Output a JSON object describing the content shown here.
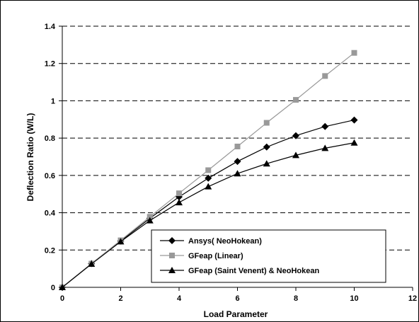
{
  "chart_data": {
    "type": "line",
    "title": "",
    "xlabel": "Load Parameter",
    "ylabel": "Deflection Ratio (W/L)",
    "xlim": [
      0,
      12
    ],
    "ylim": [
      0,
      1.4
    ],
    "x_ticks": [
      "0",
      "2",
      "4",
      "6",
      "8",
      "10",
      "12"
    ],
    "y_ticks": [
      "0",
      "0.2",
      "0.4",
      "0.6",
      "0.8",
      "1",
      "1.2",
      "1.4"
    ],
    "grid": "horizontal dashed",
    "legend_position": "inside-bottom-right",
    "series": [
      {
        "name": "Ansys( NeoHokean)",
        "marker": "diamond",
        "color": "#000000",
        "x": [
          0,
          1,
          2,
          3,
          4,
          5,
          6,
          7,
          8,
          9,
          10
        ],
        "y": [
          0,
          0.127,
          0.248,
          0.37,
          0.485,
          0.585,
          0.675,
          0.752,
          0.813,
          0.862,
          0.897
        ]
      },
      {
        "name": "GFeap (Linear)",
        "marker": "square",
        "color": "#999999",
        "x": [
          0,
          1,
          2,
          3,
          4,
          5,
          6,
          7,
          8,
          9,
          10
        ],
        "y": [
          0,
          0.127,
          0.252,
          0.378,
          0.504,
          0.628,
          0.755,
          0.882,
          1.005,
          1.133,
          1.257
        ]
      },
      {
        "name": "GFeap (Saint Venent) & NeoHokean",
        "marker": "triangle",
        "color": "#000000",
        "x": [
          0,
          1,
          2,
          3,
          4,
          5,
          6,
          7,
          8,
          9,
          10
        ],
        "y": [
          0,
          0.125,
          0.245,
          0.358,
          0.455,
          0.54,
          0.61,
          0.663,
          0.708,
          0.746,
          0.775
        ]
      }
    ]
  }
}
